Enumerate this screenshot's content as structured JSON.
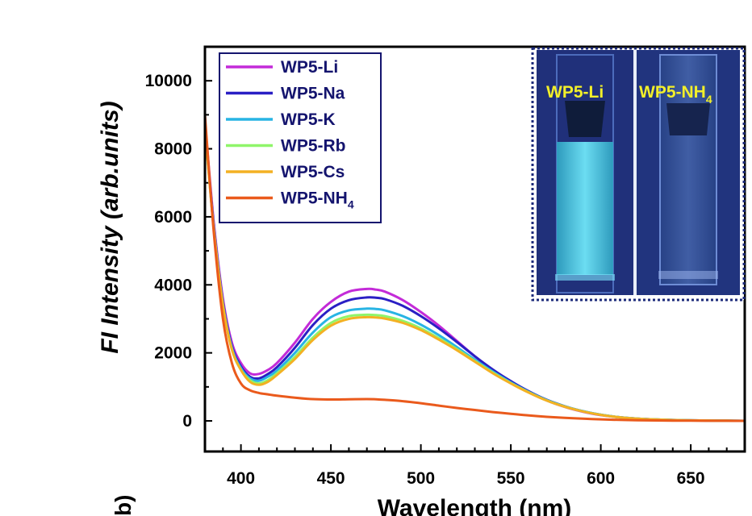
{
  "chart_data": {
    "type": "line",
    "xlabel": "Wavelength (nm)",
    "ylabel": "FI Intensity (arb.units)",
    "xlim": [
      380,
      680
    ],
    "ylim": [
      -900,
      11000
    ],
    "x_ticks": [
      "400",
      "450",
      "500",
      "550",
      "600",
      "650"
    ],
    "y_ticks": [
      "0",
      "2000",
      "4000",
      "6000",
      "8000",
      "10000"
    ],
    "x_tick_values": [
      400,
      450,
      500,
      550,
      600,
      650
    ],
    "y_tick_values": [
      0,
      2000,
      4000,
      6000,
      8000,
      10000
    ],
    "legend_position": "top-left",
    "x": [
      380,
      385,
      390,
      395,
      400,
      405,
      410,
      415,
      420,
      430,
      440,
      450,
      460,
      470,
      475,
      480,
      490,
      500,
      510,
      520,
      530,
      540,
      550,
      560,
      570,
      580,
      590,
      600,
      610,
      620,
      630,
      640,
      650,
      660,
      670,
      680
    ],
    "series": [
      {
        "name": "WP5-Li",
        "label_main": "WP5-Li",
        "label_sub": "",
        "color": "#c32bd8",
        "values": [
          8800,
          5800,
          3600,
          2300,
          1700,
          1400,
          1380,
          1500,
          1700,
          2300,
          3000,
          3500,
          3800,
          3880,
          3860,
          3800,
          3550,
          3200,
          2800,
          2350,
          1900,
          1500,
          1150,
          850,
          600,
          410,
          270,
          170,
          105,
          65,
          40,
          25,
          15,
          10,
          5,
          0
        ]
      },
      {
        "name": "WP5-Na",
        "label_main": "WP5-Na",
        "label_sub": "",
        "color": "#2a1fc4",
        "values": [
          8700,
          5700,
          3500,
          2200,
          1600,
          1300,
          1250,
          1380,
          1580,
          2150,
          2820,
          3300,
          3550,
          3630,
          3620,
          3580,
          3380,
          3080,
          2720,
          2320,
          1900,
          1510,
          1170,
          870,
          620,
          430,
          285,
          180,
          110,
          68,
          42,
          26,
          16,
          10,
          5,
          0
        ]
      },
      {
        "name": "WP5-K",
        "label_main": "WP5-K",
        "label_sub": "",
        "color": "#28b4e4",
        "values": [
          8650,
          5650,
          3450,
          2150,
          1550,
          1250,
          1180,
          1300,
          1480,
          2000,
          2600,
          3050,
          3250,
          3300,
          3290,
          3250,
          3080,
          2830,
          2520,
          2170,
          1800,
          1450,
          1130,
          850,
          610,
          425,
          285,
          180,
          110,
          68,
          42,
          26,
          16,
          10,
          5,
          0
        ]
      },
      {
        "name": "WP5-Rb",
        "label_main": "WP5-Rb",
        "label_sub": "",
        "color": "#8ff56a",
        "values": [
          8600,
          5600,
          3400,
          2100,
          1500,
          1200,
          1100,
          1200,
          1400,
          1880,
          2450,
          2880,
          3080,
          3120,
          3110,
          3080,
          2940,
          2720,
          2430,
          2110,
          1760,
          1420,
          1110,
          840,
          600,
          420,
          280,
          178,
          108,
          66,
          40,
          25,
          15,
          10,
          5,
          0
        ]
      },
      {
        "name": "WP5-Cs",
        "label_main": "WP5-Cs",
        "label_sub": "",
        "color": "#f3b123",
        "values": [
          8600,
          5600,
          3400,
          2100,
          1500,
          1150,
          1060,
          1150,
          1350,
          1820,
          2380,
          2800,
          3000,
          3050,
          3040,
          3010,
          2880,
          2670,
          2390,
          2080,
          1740,
          1400,
          1100,
          830,
          595,
          415,
          278,
          176,
          107,
          65,
          40,
          25,
          15,
          10,
          5,
          0
        ]
      },
      {
        "name": "WP5-NH4",
        "label_main": "WP5-NH",
        "label_sub": "4",
        "color": "#ea5a1c",
        "values": [
          9000,
          5500,
          3000,
          1700,
          1100,
          900,
          820,
          780,
          740,
          680,
          640,
          630,
          635,
          640,
          635,
          620,
          580,
          520,
          450,
          380,
          320,
          260,
          210,
          160,
          120,
          90,
          65,
          45,
          30,
          20,
          12,
          8,
          5,
          3,
          2,
          0
        ]
      }
    ]
  },
  "inset": {
    "label_li": "WP5-Li",
    "label_nh4_main": "WP5-NH",
    "label_nh4_sub": "4"
  },
  "partial_glyph": "b)"
}
